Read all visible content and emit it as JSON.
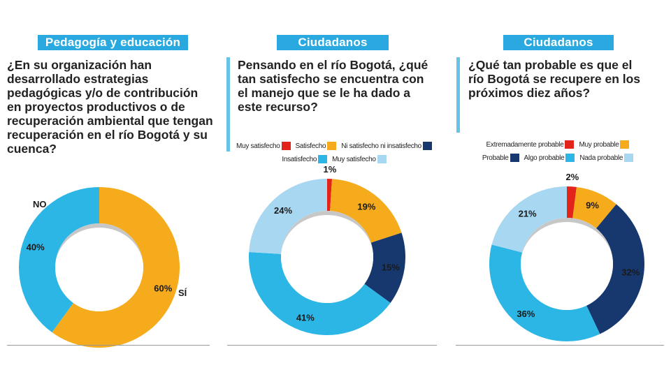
{
  "colors": {
    "header": "#29a9e0",
    "red": "#e2241a",
    "orange": "#f5ab1b",
    "navy": "#17386f",
    "cyan": "#2bb6e6",
    "light_blue": "#a8d7f2"
  },
  "chart_data": [
    {
      "type": "pie",
      "header": "Pedagogía y educación",
      "title": "¿En su organización han desarrollado estrategias pedagógicas y/o de contribución en proyectos productivos o de recuperación ambiental que tengan recuperación en el río Bogotá y su cuenca?",
      "slices": [
        {
          "label": "SÍ",
          "value": 60,
          "value_label": "60%",
          "color": "#f5ab1b"
        },
        {
          "label": "NO",
          "value": 40,
          "value_label": "40%",
          "color": "#2bb6e6"
        }
      ]
    },
    {
      "type": "pie",
      "header": "Ciudadanos",
      "title": "Pensando en el río Bogotá, ¿qué tan satisfecho se encuentra con el manejo que se le ha dado a este recurso?",
      "legend": [
        {
          "label": "Muy satisfecho",
          "color": "#e2241a"
        },
        {
          "label": "Satisfecho",
          "color": "#f5ab1b"
        },
        {
          "label": "Ni satisfecho ni insatisfecho",
          "color": "#17386f"
        },
        {
          "label": "Insatisfecho",
          "color": "#2bb6e6"
        },
        {
          "label": "Muy satisfecho",
          "color": "#a8d7f2"
        }
      ],
      "slices": [
        {
          "value": 1,
          "value_label": "1%",
          "color": "#e2241a"
        },
        {
          "value": 19,
          "value_label": "19%",
          "color": "#f5ab1b"
        },
        {
          "value": 15,
          "value_label": "15%",
          "color": "#17386f"
        },
        {
          "value": 41,
          "value_label": "41%",
          "color": "#2bb6e6"
        },
        {
          "value": 24,
          "value_label": "24%",
          "color": "#a8d7f2"
        }
      ]
    },
    {
      "type": "pie",
      "header": "Ciudadanos",
      "title": "¿Qué tan probable es que el río Bogotá se recupere en los próximos diez años?",
      "legend": [
        {
          "label": "Extremadamente probable",
          "color": "#e2241a"
        },
        {
          "label": "Muy probable",
          "color": "#f5ab1b"
        },
        {
          "label": "Probable",
          "color": "#17386f"
        },
        {
          "label": "Algo probable",
          "color": "#2bb6e6"
        },
        {
          "label": "Nada probable",
          "color": "#a8d7f2"
        }
      ],
      "slices": [
        {
          "value": 2,
          "value_label": "2%",
          "color": "#e2241a"
        },
        {
          "value": 9,
          "value_label": "9%",
          "color": "#f5ab1b"
        },
        {
          "value": 32,
          "value_label": "32%",
          "color": "#17386f"
        },
        {
          "value": 36,
          "value_label": "36%",
          "color": "#2bb6e6"
        },
        {
          "value": 21,
          "value_label": "21%",
          "color": "#a8d7f2"
        }
      ]
    }
  ]
}
